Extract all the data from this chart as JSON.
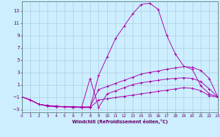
{
  "xlabel": "Windchill (Refroidissement éolien,°C)",
  "bg_color": "#cceeff",
  "grid_color": "#aaccdd",
  "line_color": "#aa00aa",
  "xlim": [
    0,
    23
  ],
  "ylim": [
    -3.5,
    14.5
  ],
  "xticks": [
    0,
    1,
    2,
    3,
    4,
    5,
    6,
    7,
    8,
    9,
    10,
    11,
    12,
    13,
    14,
    15,
    16,
    17,
    18,
    19,
    20,
    21,
    22,
    23
  ],
  "yticks": [
    -3,
    -1,
    1,
    3,
    5,
    7,
    9,
    11,
    13
  ],
  "lines": [
    {
      "x": [
        0,
        1,
        2,
        3,
        4,
        5,
        6,
        7,
        8,
        9,
        10,
        11,
        12,
        13,
        14,
        15,
        16,
        17,
        18,
        19,
        20,
        21,
        22,
        23
      ],
      "y": [
        -1.0,
        -1.5,
        -2.2,
        -2.5,
        -2.6,
        -2.6,
        -2.7,
        -2.7,
        -2.7,
        2.5,
        5.5,
        8.5,
        10.5,
        12.5,
        14.0,
        14.2,
        13.2,
        9.0,
        6.0,
        4.0,
        3.5,
        0.8,
        -0.5,
        -1.0
      ]
    },
    {
      "x": [
        0,
        1,
        2,
        3,
        4,
        5,
        6,
        7,
        8,
        9,
        10,
        11,
        12,
        13,
        14,
        15,
        16,
        17,
        18,
        19,
        20,
        21,
        22,
        23
      ],
      "y": [
        -1.0,
        -1.5,
        -2.2,
        -2.4,
        -2.5,
        -2.6,
        -2.6,
        -2.6,
        -2.6,
        0.2,
        0.7,
        1.2,
        1.7,
        2.2,
        2.7,
        3.0,
        3.2,
        3.5,
        3.7,
        3.9,
        3.8,
        3.3,
        2.0,
        -1.0
      ]
    },
    {
      "x": [
        0,
        1,
        2,
        3,
        4,
        5,
        6,
        7,
        8,
        9,
        10,
        11,
        12,
        13,
        14,
        15,
        16,
        17,
        18,
        19,
        20,
        21,
        22,
        23
      ],
      "y": [
        -1.0,
        -1.5,
        -2.2,
        -2.4,
        -2.5,
        -2.6,
        -2.6,
        -2.7,
        2.0,
        -2.7,
        -0.5,
        0.0,
        0.5,
        1.0,
        1.3,
        1.5,
        1.7,
        1.9,
        2.0,
        2.1,
        2.0,
        1.5,
        0.3,
        -1.0
      ]
    },
    {
      "x": [
        0,
        1,
        2,
        3,
        4,
        5,
        6,
        7,
        8,
        9,
        10,
        11,
        12,
        13,
        14,
        15,
        16,
        17,
        18,
        19,
        20,
        21,
        22,
        23
      ],
      "y": [
        -1.0,
        -1.5,
        -2.2,
        -2.4,
        -2.5,
        -2.6,
        -2.6,
        -2.7,
        -2.7,
        -1.5,
        -1.3,
        -1.1,
        -0.9,
        -0.7,
        -0.5,
        -0.3,
        -0.1,
        0.1,
        0.3,
        0.5,
        0.4,
        0.0,
        -0.8,
        -1.0
      ]
    }
  ]
}
